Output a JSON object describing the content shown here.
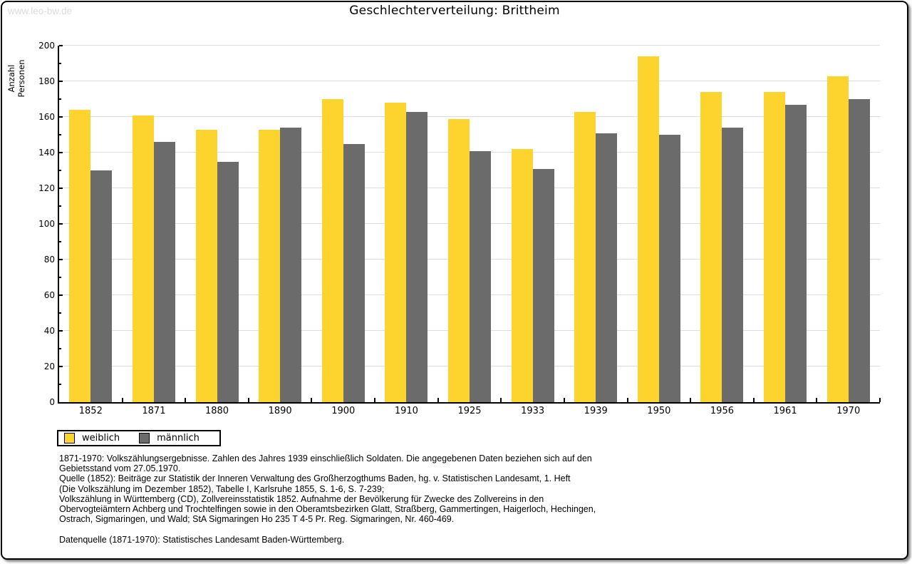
{
  "watermark": "www.leo-bw.de",
  "chart_data": {
    "type": "bar",
    "title": "Geschlechterverteilung: Brittheim",
    "xlabel": "",
    "ylabel": "Anzahl Personen",
    "ylim": [
      0,
      200
    ],
    "ytick_step": 20,
    "ytick_minor_step": 10,
    "grid": true,
    "legend_position": "bottom-left",
    "categories": [
      "1852",
      "1871",
      "1880",
      "1890",
      "1900",
      "1910",
      "1925",
      "1933",
      "1939",
      "1950",
      "1956",
      "1961",
      "1970"
    ],
    "series": [
      {
        "name": "weiblich",
        "color": "#FCD42D",
        "values": [
          164,
          161,
          153,
          153,
          170,
          168,
          159,
          142,
          163,
          194,
          174,
          174,
          183
        ]
      },
      {
        "name": "männlich",
        "color": "#6B6B6B",
        "values": [
          130,
          146,
          135,
          154,
          145,
          163,
          141,
          131,
          151,
          150,
          154,
          167,
          170
        ]
      }
    ]
  },
  "legend": {
    "items": [
      {
        "label": "weiblich",
        "color": "#FCD42D"
      },
      {
        "label": "männlich",
        "color": "#6B6B6B"
      }
    ]
  },
  "footnotes": {
    "lines": [
      "1871-1970: Volkszählungsergebnisse. Zahlen des Jahres 1939 einschließlich Soldaten. Die angegebenen Daten beziehen sich auf den",
      "Gebietsstand vom 27.05.1970.",
      "Quelle (1852): Beiträge zur Statistik der Inneren Verwaltung des Großherzogthums Baden, hg. v. Statistischen Landesamt, 1. Heft",
      "(Die Volkszählung im Dezember 1852), Tabelle I, Karlsruhe 1855, S. 1-6, S. 7-239;",
      "Volkszählung in Württemberg (CD), Zollvereinsstatistik 1852. Aufnahme der Bevölkerung für Zwecke des Zollvereins in den",
      "Obervogteiämtern Achberg und Trochtelfingen sowie in den Oberamtsbezirken Glatt, Straßberg, Gammertingen, Haigerloch, Hechingen,",
      "Ostrach, Sigmaringen, und Wald; StA Sigmaringen Ho 235 T 4-5 Pr. Reg. Sigmaringen, Nr. 460-469.",
      "",
      "Datenquelle (1871-1970): Statistisches Landesamt Baden-Württemberg."
    ]
  },
  "colors": {
    "axis": "#000000",
    "gridline": "#DDDDDD",
    "watermark": "#DBDBDB",
    "background": "#FFFFFF"
  }
}
